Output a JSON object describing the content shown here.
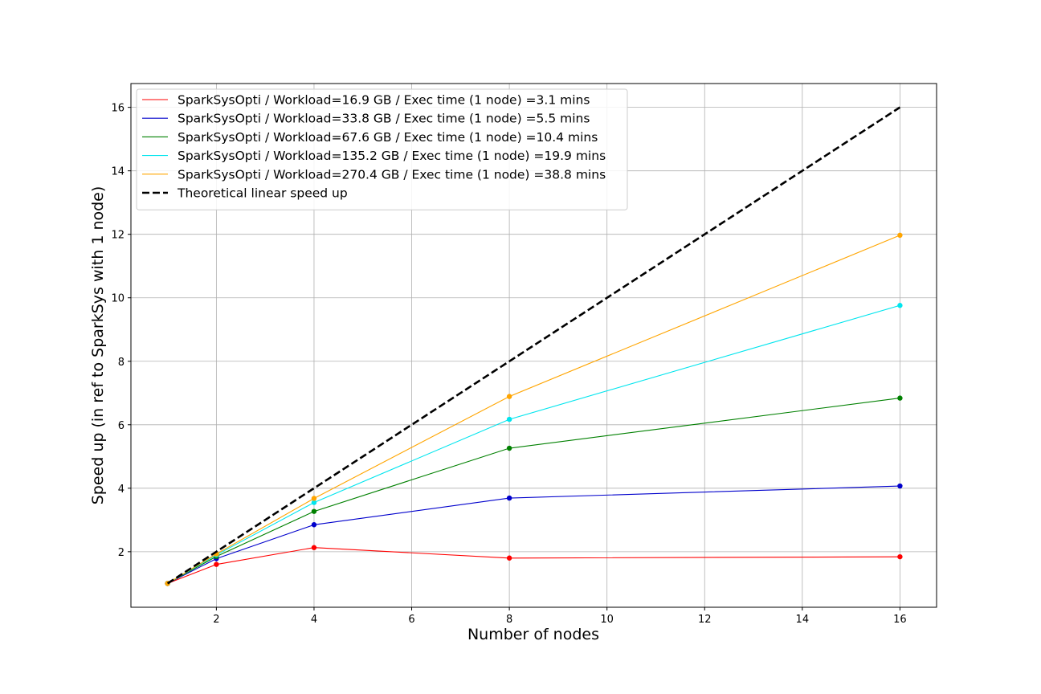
{
  "chart_data": {
    "type": "line",
    "title": "",
    "xlabel": "Number of nodes",
    "ylabel": "Speed up (in ref to SparkSys with 1 node)",
    "xlim": [
      0.25,
      16.75
    ],
    "ylim": [
      0.25,
      16.75
    ],
    "x_ticks": [
      2,
      4,
      6,
      8,
      10,
      12,
      14,
      16
    ],
    "y_ticks": [
      2,
      4,
      6,
      8,
      10,
      12,
      14,
      16
    ],
    "grid": true,
    "legend_position": "upper-left",
    "x": [
      1,
      2,
      4,
      8,
      16
    ],
    "series": [
      {
        "name": "SparkSysOpti / Workload=16.9 GB / Exec time (1 node) =3.1 mins",
        "color": "#ff0000",
        "markers": true,
        "values": [
          1.0,
          1.6,
          2.13,
          1.8,
          1.84
        ]
      },
      {
        "name": "SparkSysOpti / Workload=33.8 GB / Exec time (1 node) =5.5 mins",
        "color": "#0000cc",
        "markers": true,
        "values": [
          1.0,
          1.78,
          2.85,
          3.69,
          4.07
        ]
      },
      {
        "name": "SparkSysOpti / Workload=67.6 GB / Exec time (1 node) =10.4 mins",
        "color": "#008000",
        "markers": true,
        "values": [
          1.0,
          1.85,
          3.27,
          5.26,
          6.84
        ]
      },
      {
        "name": "SparkSysOpti / Workload=135.2 GB / Exec time (1 node) =19.9 mins",
        "color": "#00e5ee",
        "markers": true,
        "values": [
          1.0,
          1.9,
          3.55,
          6.17,
          9.76
        ]
      },
      {
        "name": "SparkSysOpti / Workload=270.4 GB / Exec time (1 node) =38.8 mins",
        "color": "#ffa500",
        "markers": true,
        "values": [
          1.0,
          1.93,
          3.68,
          6.89,
          11.97
        ]
      },
      {
        "name": "Theoretical linear speed up",
        "color": "#000000",
        "dashed": true,
        "markers": false,
        "values": [
          1,
          2,
          4,
          8,
          16
        ]
      }
    ]
  }
}
